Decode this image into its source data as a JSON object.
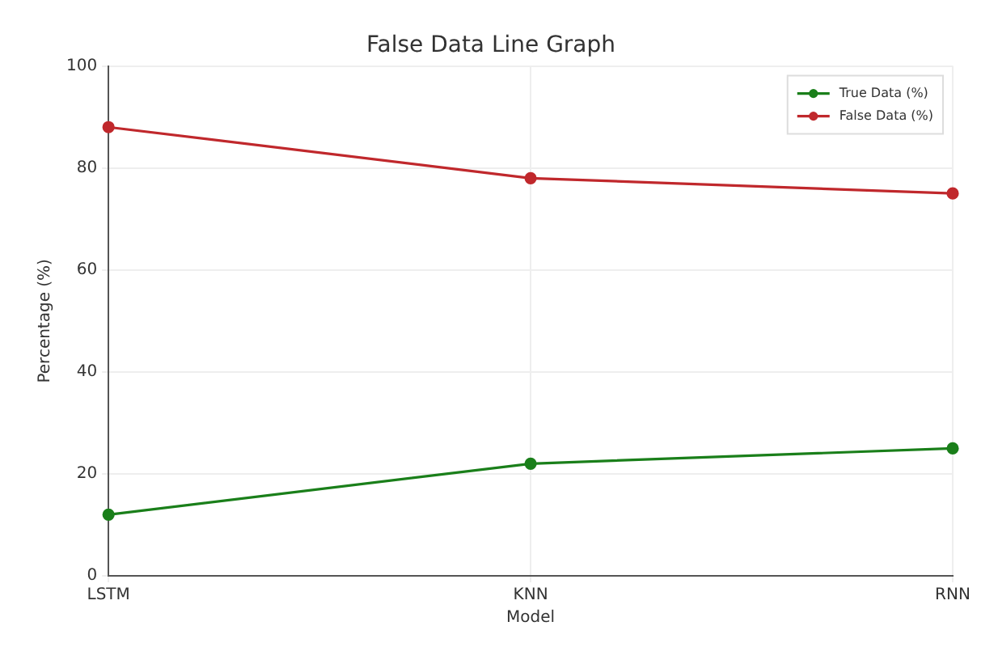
{
  "chart_data": {
    "type": "line",
    "title": "False Data Line Graph",
    "xlabel": "Model",
    "ylabel": "Percentage (%)",
    "categories": [
      "LSTM",
      "KNN",
      "RNN"
    ],
    "series": [
      {
        "name": "True Data (%)",
        "color": "#1a7f1a",
        "values": [
          12,
          22,
          25
        ]
      },
      {
        "name": "False Data (%)",
        "color": "#c0282c",
        "values": [
          88,
          78,
          75
        ]
      }
    ],
    "ylim": [
      0,
      100
    ],
    "yticks": [
      0,
      20,
      40,
      60,
      80,
      100
    ],
    "grid": true,
    "legend": "top right",
    "marker": "circle",
    "line_style": "solid"
  }
}
